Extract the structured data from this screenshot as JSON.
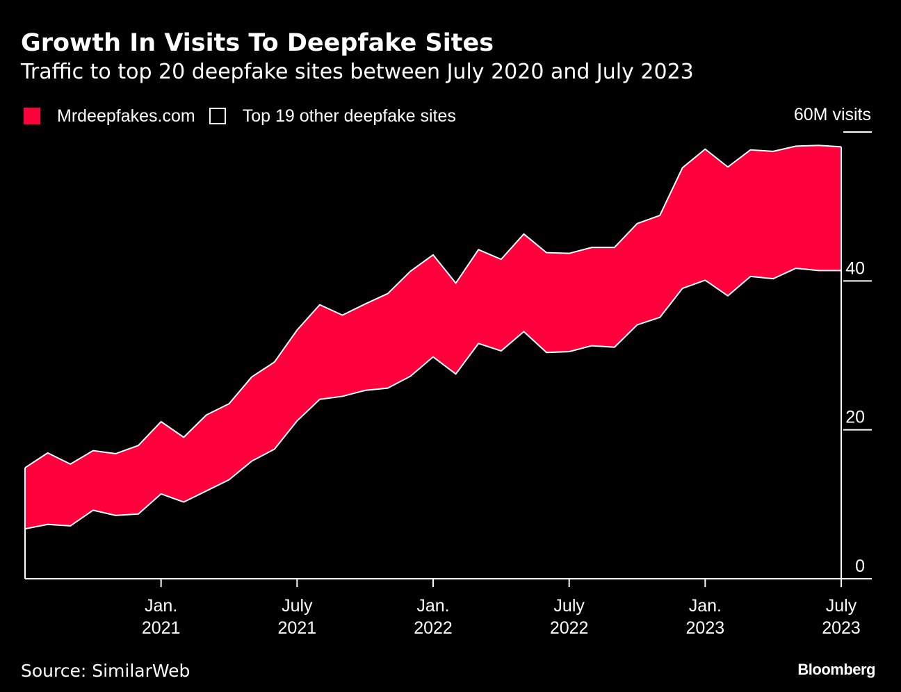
{
  "chart_data": {
    "type": "area",
    "title": "Growth In Visits To Deepfake Sites",
    "subtitle": "Traffic to top 20 deepfake sites between July 2020 and July 2023",
    "stacked": true,
    "unit_label": "60M visits",
    "ylim": [
      0,
      60
    ],
    "y_ticks": [
      {
        "value": 0,
        "label": "0"
      },
      {
        "value": 20,
        "label": "20"
      },
      {
        "value": 40,
        "label": "40"
      },
      {
        "value": 60,
        "label": ""
      }
    ],
    "x_ticks": [
      {
        "date": "2021-01",
        "line1": "Jan.",
        "line2": "2021"
      },
      {
        "date": "2021-07",
        "line1": "July",
        "line2": "2021"
      },
      {
        "date": "2022-01",
        "line1": "Jan.",
        "line2": "2022"
      },
      {
        "date": "2022-07",
        "line1": "July",
        "line2": "2022"
      },
      {
        "date": "2023-01",
        "line1": "Jan.",
        "line2": "2023"
      },
      {
        "date": "2023-07",
        "line1": "July",
        "line2": "2023"
      }
    ],
    "x": [
      "2020-07",
      "2020-08",
      "2020-09",
      "2020-10",
      "2020-11",
      "2020-12",
      "2021-01",
      "2021-02",
      "2021-03",
      "2021-04",
      "2021-05",
      "2021-06",
      "2021-07",
      "2021-08",
      "2021-09",
      "2021-10",
      "2021-11",
      "2021-12",
      "2022-01",
      "2022-02",
      "2022-03",
      "2022-04",
      "2022-05",
      "2022-06",
      "2022-07",
      "2022-08",
      "2022-09",
      "2022-10",
      "2022-11",
      "2022-12",
      "2023-01",
      "2023-02",
      "2023-03",
      "2023-04",
      "2023-05",
      "2023-06",
      "2023-07"
    ],
    "legend_position": "top-left",
    "series": [
      {
        "name": "Top 19 other deepfake sites",
        "color": "#000000",
        "outline": "#ffffff",
        "values": [
          6.7,
          7.3,
          7.1,
          9.2,
          8.5,
          8.7,
          11.4,
          10.3,
          11.8,
          13.3,
          15.8,
          17.4,
          21.2,
          24.1,
          24.5,
          25.3,
          25.6,
          27.2,
          29.8,
          27.5,
          31.6,
          30.6,
          33.2,
          30.4,
          30.5,
          31.3,
          31.1,
          34.1,
          35.1,
          39.0,
          40.1,
          38.0,
          40.6,
          40.3,
          41.7,
          41.4,
          41.4
        ]
      },
      {
        "name": "Mrdeepfakes.com",
        "color": "#ff003c",
        "values": [
          8.2,
          9.6,
          8.3,
          8.0,
          8.3,
          9.2,
          9.7,
          8.7,
          10.2,
          10.2,
          11.3,
          11.7,
          12.2,
          12.7,
          10.9,
          11.6,
          12.7,
          14.1,
          13.7,
          12.2,
          12.6,
          12.3,
          13.1,
          13.4,
          13.2,
          13.2,
          13.4,
          13.6,
          13.7,
          16.2,
          17.6,
          17.3,
          17.0,
          17.1,
          16.4,
          16.8,
          16.6
        ]
      }
    ]
  },
  "legend": {
    "items": [
      {
        "label": "Mrdeepfakes.com",
        "style": "filled",
        "color": "#ff003c"
      },
      {
        "label": "Top 19 other deepfake sites",
        "style": "outlined"
      }
    ]
  },
  "footer": {
    "source": "Source: SimilarWeb",
    "brand": "Bloomberg"
  }
}
